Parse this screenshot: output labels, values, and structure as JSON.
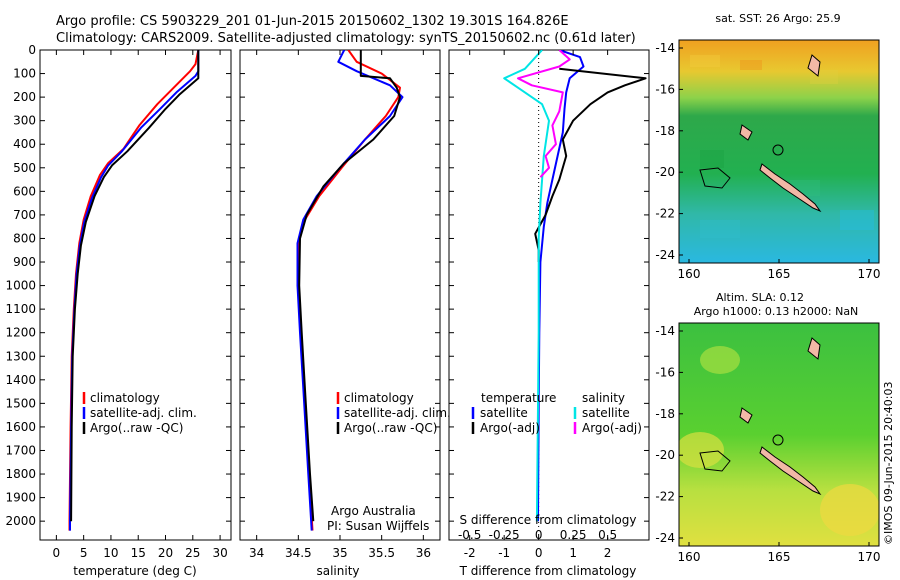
{
  "header": {
    "line1": "Argo profile: CS 5903229_201 01-Jun-2015 20150602_1302 19.301S 164.826E",
    "line2": "Climatology: CARS2009. Satellite-adjusted climatology: synTS_20150602.nc (0.61d later)"
  },
  "colors": {
    "climatology": "#ff0000",
    "satellite": "#0000ff",
    "argo": "#000000",
    "salinity_satellite": "#00e5e5",
    "salinity_argo": "#ff00ff",
    "land": "#f2b8a6"
  },
  "chart_data": [
    {
      "type": "line",
      "xlabel": "temperature (deg C)",
      "xlim": [
        -3,
        32
      ],
      "xticks": [
        0,
        5,
        10,
        15,
        20,
        25,
        30
      ],
      "ylim": [
        0,
        2080
      ],
      "yticks": [
        0,
        100,
        200,
        300,
        400,
        500,
        600,
        700,
        800,
        900,
        1000,
        1100,
        1200,
        1300,
        1400,
        1500,
        1600,
        1700,
        1800,
        1900,
        2000
      ],
      "legend": [
        "climatology",
        "satellite-adj. clim.",
        "Argo(..raw -QC)"
      ],
      "series": [
        {
          "name": "climatology",
          "color": "#ff0000",
          "points": [
            [
              26,
              0
            ],
            [
              25.5,
              60
            ],
            [
              24.5,
              90
            ],
            [
              21.5,
              160
            ],
            [
              18.5,
              230
            ],
            [
              15.2,
              320
            ],
            [
              12.3,
              420
            ],
            [
              9.5,
              480
            ],
            [
              8,
              530
            ],
            [
              6.3,
              620
            ],
            [
              5,
              720
            ],
            [
              4.2,
              820
            ],
            [
              3.6,
              950
            ],
            [
              3.2,
              1100
            ],
            [
              2.8,
              1300
            ],
            [
              2.6,
              1600
            ],
            [
              2.4,
              2000
            ],
            [
              2.4,
              2040
            ]
          ]
        },
        {
          "name": "satellite-adj. clim.",
          "color": "#0000ff",
          "points": [
            [
              26,
              0
            ],
            [
              26,
              90
            ],
            [
              25.5,
              110
            ],
            [
              22,
              180
            ],
            [
              19,
              250
            ],
            [
              15.5,
              330
            ],
            [
              12,
              430
            ],
            [
              9.5,
              490
            ],
            [
              8.2,
              540
            ],
            [
              6.5,
              630
            ],
            [
              5.1,
              730
            ],
            [
              4.3,
              830
            ],
            [
              3.7,
              950
            ],
            [
              3.3,
              1100
            ],
            [
              2.9,
              1300
            ],
            [
              2.7,
              1600
            ],
            [
              2.5,
              2000
            ],
            [
              2.5,
              2040
            ]
          ]
        },
        {
          "name": "Argo(..raw -QC)",
          "color": "#000000",
          "points": [
            [
              26,
              0
            ],
            [
              26,
              120
            ],
            [
              25,
              140
            ],
            [
              22.5,
              190
            ],
            [
              20,
              250
            ],
            [
              17,
              330
            ],
            [
              13,
              430
            ],
            [
              10.2,
              490
            ],
            [
              8.7,
              540
            ],
            [
              7,
              620
            ],
            [
              5.4,
              730
            ],
            [
              4.5,
              830
            ],
            [
              3.9,
              950
            ],
            [
              3.4,
              1100
            ],
            [
              3,
              1300
            ],
            [
              2.8,
              1600
            ],
            [
              2.7,
              2000
            ]
          ]
        }
      ]
    },
    {
      "type": "line",
      "xlabel": "salinity",
      "xlim": [
        33.8,
        36.2
      ],
      "xticks": [
        34,
        34.5,
        35,
        35.5,
        36
      ],
      "ylim": [
        0,
        2080
      ],
      "legend": [
        "climatology",
        "satellite-adj. clim.",
        "Argo(..raw -QC)"
      ],
      "annotation": [
        "Argo Australia",
        "PI: Susan Wijffels"
      ],
      "series": [
        {
          "name": "climatology",
          "color": "#ff0000",
          "points": [
            [
              35.1,
              0
            ],
            [
              35.2,
              50
            ],
            [
              35.5,
              100
            ],
            [
              35.72,
              160
            ],
            [
              35.7,
              200
            ],
            [
              35.55,
              280
            ],
            [
              35.3,
              380
            ],
            [
              35.02,
              500
            ],
            [
              34.75,
              620
            ],
            [
              34.58,
              720
            ],
            [
              34.5,
              820
            ],
            [
              34.5,
              1000
            ],
            [
              34.53,
              1200
            ],
            [
              34.58,
              1500
            ],
            [
              34.63,
              1800
            ],
            [
              34.67,
              2040
            ]
          ]
        },
        {
          "name": "satellite-adj. clim.",
          "color": "#0000ff",
          "points": [
            [
              35.05,
              0
            ],
            [
              34.98,
              50
            ],
            [
              35.2,
              90
            ],
            [
              35.6,
              150
            ],
            [
              35.75,
              200
            ],
            [
              35.6,
              280
            ],
            [
              35.3,
              380
            ],
            [
              35,
              500
            ],
            [
              34.72,
              620
            ],
            [
              34.56,
              720
            ],
            [
              34.49,
              820
            ],
            [
              34.49,
              1000
            ],
            [
              34.52,
              1200
            ],
            [
              34.57,
              1500
            ],
            [
              34.62,
              1800
            ],
            [
              34.66,
              2040
            ]
          ]
        },
        {
          "name": "Argo(..raw -QC)",
          "color": "#000000",
          "points": [
            [
              35.25,
              0
            ],
            [
              35.25,
              110
            ],
            [
              35.6,
              120
            ],
            [
              35.68,
              160
            ],
            [
              35.72,
              200
            ],
            [
              35.65,
              280
            ],
            [
              35.4,
              380
            ],
            [
              35.05,
              480
            ],
            [
              34.8,
              580
            ],
            [
              34.6,
              700
            ],
            [
              34.52,
              800
            ],
            [
              34.51,
              1000
            ],
            [
              34.54,
              1200
            ],
            [
              34.59,
              1500
            ],
            [
              34.64,
              1800
            ],
            [
              34.68,
              2000
            ]
          ]
        }
      ]
    },
    {
      "type": "line",
      "xlabel": "T difference from climatology",
      "xlim": [
        -2.6,
        3.2
      ],
      "xticks": [
        -2,
        -1,
        0,
        1,
        2
      ],
      "xlabel_top": "S difference from climatology",
      "xticks_top": [
        "-0.5",
        "-0.25",
        "0",
        "0.25",
        "0.5"
      ],
      "ylim": [
        0,
        2080
      ],
      "legend_headers": [
        "temperature",
        "salinity"
      ],
      "legend": [
        "satellite",
        "Argo(-adj)",
        "satellite",
        "Argo(-adj)"
      ],
      "series": [
        {
          "name": "satellite",
          "color": "#0000ff",
          "points": [
            [
              0.6,
              0
            ],
            [
              1.2,
              30
            ],
            [
              1.3,
              70
            ],
            [
              0.9,
              120
            ],
            [
              0.8,
              180
            ],
            [
              0.75,
              250
            ],
            [
              0.7,
              350
            ],
            [
              0.55,
              450
            ],
            [
              0.4,
              550
            ],
            [
              0.25,
              650
            ],
            [
              0.15,
              750
            ],
            [
              0.05,
              900
            ],
            [
              0.02,
              1200
            ],
            [
              0,
              1500
            ],
            [
              -0.02,
              2000
            ]
          ]
        },
        {
          "name": "Argo(-adj)",
          "color": "#000000",
          "points": [
            [
              0.6,
              80
            ],
            [
              3.1,
              120
            ],
            [
              2.5,
              150
            ],
            [
              2,
              180
            ],
            [
              1.5,
              230
            ],
            [
              1,
              300
            ],
            [
              0.7,
              380
            ],
            [
              0.8,
              450
            ],
            [
              0.6,
              550
            ],
            [
              0.4,
              620
            ],
            [
              0.2,
              700
            ],
            [
              -0.1,
              780
            ],
            [
              0,
              850
            ],
            [
              0,
              900
            ]
          ]
        },
        {
          "name": "salinity satellite",
          "color": "#00e5e5",
          "points": [
            [
              0.1,
              0
            ],
            [
              -0.4,
              80
            ],
            [
              -1,
              120
            ],
            [
              -0.6,
              160
            ],
            [
              0.1,
              230
            ],
            [
              0.3,
              300
            ],
            [
              0.15,
              450
            ],
            [
              0.1,
              550
            ],
            [
              0.05,
              650
            ],
            [
              0,
              800
            ],
            [
              0,
              1200
            ],
            [
              -0.05,
              2000
            ]
          ]
        },
        {
          "name": "salinity Argo(-adj)",
          "color": "#ff00ff",
          "points": [
            [
              0.6,
              0
            ],
            [
              0.9,
              40
            ],
            [
              0.6,
              70
            ],
            [
              -0.6,
              120
            ],
            [
              -0.2,
              150
            ],
            [
              0.7,
              180
            ],
            [
              0.6,
              260
            ],
            [
              0.4,
              320
            ],
            [
              0.5,
              400
            ],
            [
              0.2,
              450
            ],
            [
              0.3,
              500
            ],
            [
              0.05,
              540
            ]
          ]
        }
      ]
    }
  ],
  "maps": [
    {
      "title": "sat. SST: 26 Argo: 25.9",
      "xticks": [
        "160",
        "165",
        "170"
      ],
      "yticks": [
        "-14",
        "-16",
        "-18",
        "-20",
        "-22",
        "-24"
      ]
    },
    {
      "title_lines": [
        "Altim. SLA: 0.12",
        "Argo h1000: 0.13 h2000: NaN"
      ],
      "xticks": [
        "160",
        "165",
        "170"
      ],
      "yticks": [
        "-14",
        "-16",
        "-18",
        "-20",
        "-22",
        "-24"
      ]
    }
  ],
  "footer_stamp": "©IMOS 09-Jun-2015 20:40:03"
}
